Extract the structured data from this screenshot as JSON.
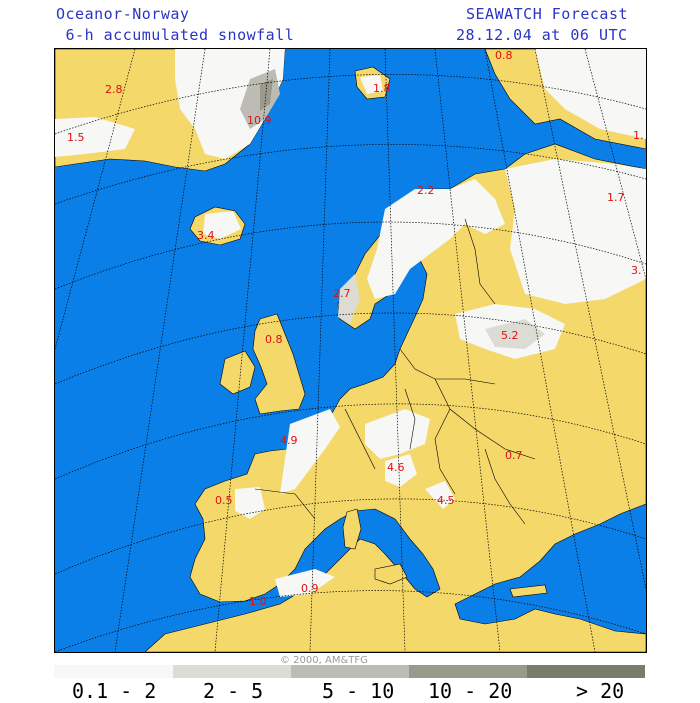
{
  "header": {
    "source": "Oceanor-Norway",
    "product": " 6-h accumulated snowfall",
    "forecast_name": "SEAWATCH Forecast",
    "forecast_time": "28.12.04 at 06 UTC"
  },
  "copyright": "© 2000, AM&TFG",
  "colors": {
    "sea": "#0b7fe8",
    "land_no_snow": "#f4d86a",
    "snow_0_1_2": "#f7f7f5",
    "snow_2_5": "#dcdcd4",
    "snow_5_10": "#bcbcb4",
    "snow_10_20": "#9a9a8c",
    "snow_gt_20": "#7c7c6c",
    "value_labels": "#e01010",
    "grid": "#000000"
  },
  "legend": [
    {
      "label": "0.1 - 2",
      "color": "#f7f7f5"
    },
    {
      "label": "2 - 5",
      "color": "#dcdcd4"
    },
    {
      "label": "5 - 10",
      "color": "#bcbcb4"
    },
    {
      "label": "10 - 20",
      "color": "#9a9a8c"
    },
    {
      "label": "> 20",
      "color": "#7c7c6c"
    }
  ],
  "max_values": [
    "2.8",
    "1.5",
    "10.9",
    "0.8",
    "1.8",
    "1.",
    "2.2",
    "1.7",
    "3.4",
    "3.",
    "2.7",
    "5.2",
    "0.8",
    "4.9",
    "4.6",
    "0.7",
    "4.5",
    "0.5",
    "0.9",
    "1.0"
  ]
}
